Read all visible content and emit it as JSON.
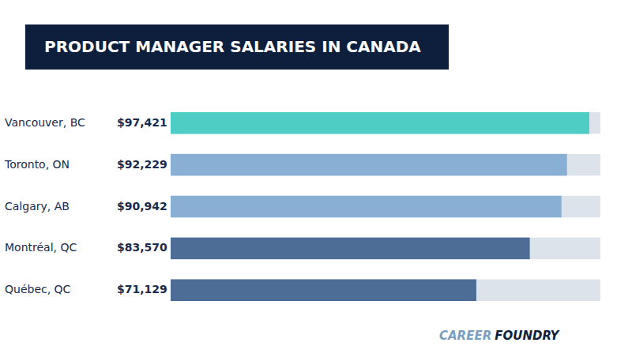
{
  "chart_data": {
    "type": "bar",
    "orientation": "horizontal",
    "title": "PRODUCT MANAGER SALARIES IN CANADA",
    "categories": [
      "Vancouver, BC",
      "Toronto, ON",
      "Calgary, AB",
      "Montréal, QC",
      "Québec, QC"
    ],
    "values": [
      97421,
      92229,
      90942,
      83570,
      71129
    ],
    "value_labels": [
      "$97,421",
      "$92,229",
      "$90,942",
      "$83,570",
      "$71,129"
    ],
    "colors": [
      "#4ecdc4",
      "#8aafd4",
      "#8aafd4",
      "#4e6d96",
      "#4e6d96"
    ],
    "xlim": [
      0,
      100000
    ],
    "data_labels": true,
    "tick_labels": false,
    "grid": false,
    "annotations": [
      "CAREER",
      "FOUNDRY"
    ]
  }
}
